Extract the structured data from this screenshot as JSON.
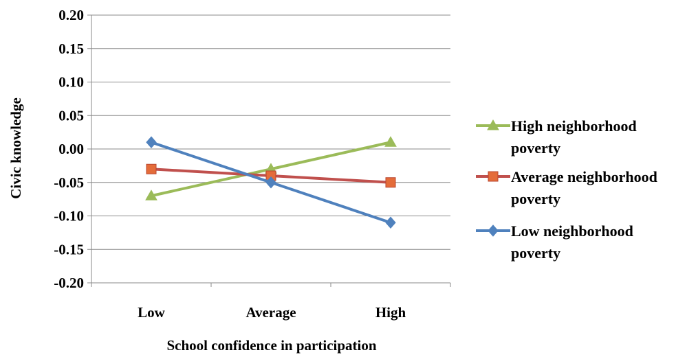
{
  "chart_data": {
    "type": "line",
    "xlabel": "School confidence in participation",
    "ylabel": "Civic knowledge",
    "ylim": [
      -0.2,
      0.2
    ],
    "y_ticks": [
      "0.20",
      "0.15",
      "0.10",
      "0.05",
      "0.00",
      "-0.05",
      "-0.10",
      "-0.15",
      "-0.20"
    ],
    "y_tick_values": [
      0.2,
      0.15,
      0.1,
      0.05,
      0.0,
      -0.05,
      -0.1,
      -0.15,
      -0.2
    ],
    "categories": [
      "Low",
      "Average",
      "High"
    ],
    "grid": true,
    "legend_position": "right",
    "series": [
      {
        "name": "High neighborhood poverty",
        "legend_lines": [
          "High neighborhood",
          "poverty"
        ],
        "values": [
          -0.07,
          -0.03,
          0.01
        ],
        "color": "#9BBB59",
        "marker": "triangle"
      },
      {
        "name": "Average neighborhood poverty",
        "legend_lines": [
          "Average neighborhood",
          "poverty"
        ],
        "values": [
          -0.03,
          -0.04,
          -0.05
        ],
        "color": "#C0504D",
        "marker": "square"
      },
      {
        "name": "Low neighborhood poverty",
        "legend_lines": [
          "Low neighborhood",
          "poverty"
        ],
        "values": [
          0.01,
          -0.05,
          -0.11
        ],
        "color": "#4F81BD",
        "marker": "diamond"
      }
    ]
  }
}
